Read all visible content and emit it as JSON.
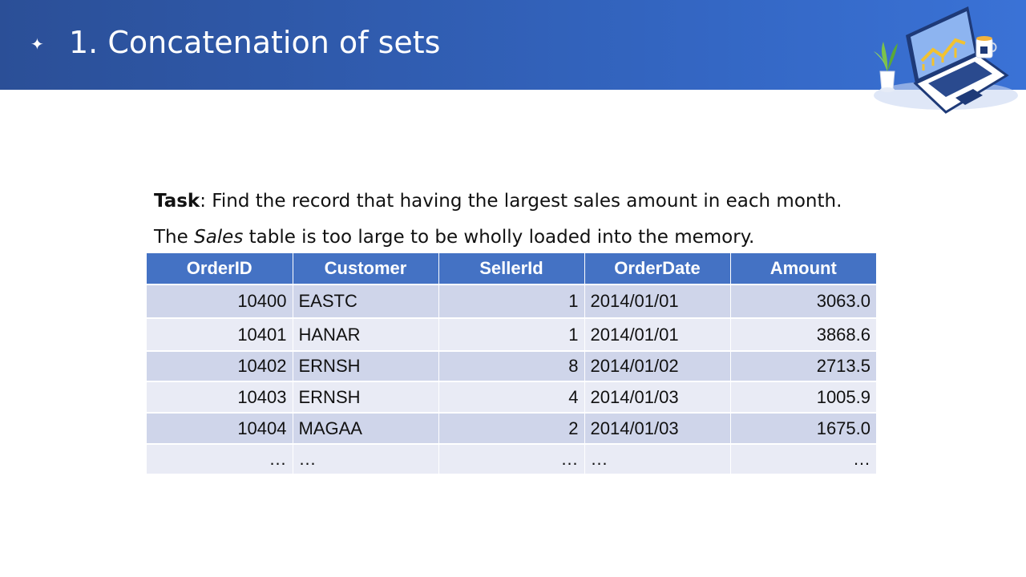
{
  "header": {
    "bullet": "✦",
    "title": "1. Concatenation of sets",
    "accent_color": "#2b4f97"
  },
  "task": {
    "label": "Task",
    "text": ": Find the record that having the largest sales amount in each month.",
    "note_prefix": "The ",
    "note_table": "Sales",
    "note_suffix": " table is too large to be wholly loaded into the memory."
  },
  "table": {
    "header_color": "#4472c4",
    "columns": [
      "OrderID",
      "Customer",
      "SellerId",
      "OrderDate",
      "Amount"
    ],
    "rows": [
      [
        "10400",
        "EASTC",
        "1",
        "2014/01/01",
        "3063.0"
      ],
      [
        "10401",
        "HANAR",
        "1",
        "2014/01/01",
        "3868.6"
      ],
      [
        "10402",
        "ERNSH",
        "8",
        "2014/01/02",
        "2713.5"
      ],
      [
        "10403",
        "ERNSH",
        "4",
        "2014/01/03",
        "1005.9"
      ],
      [
        "10404",
        "MAGAA",
        "2",
        "2014/01/03",
        "1675.0"
      ],
      [
        "…",
        "…",
        "…",
        "…",
        "…"
      ]
    ]
  },
  "illustration": {
    "icon": "laptop-with-plant-and-cup-icon"
  }
}
